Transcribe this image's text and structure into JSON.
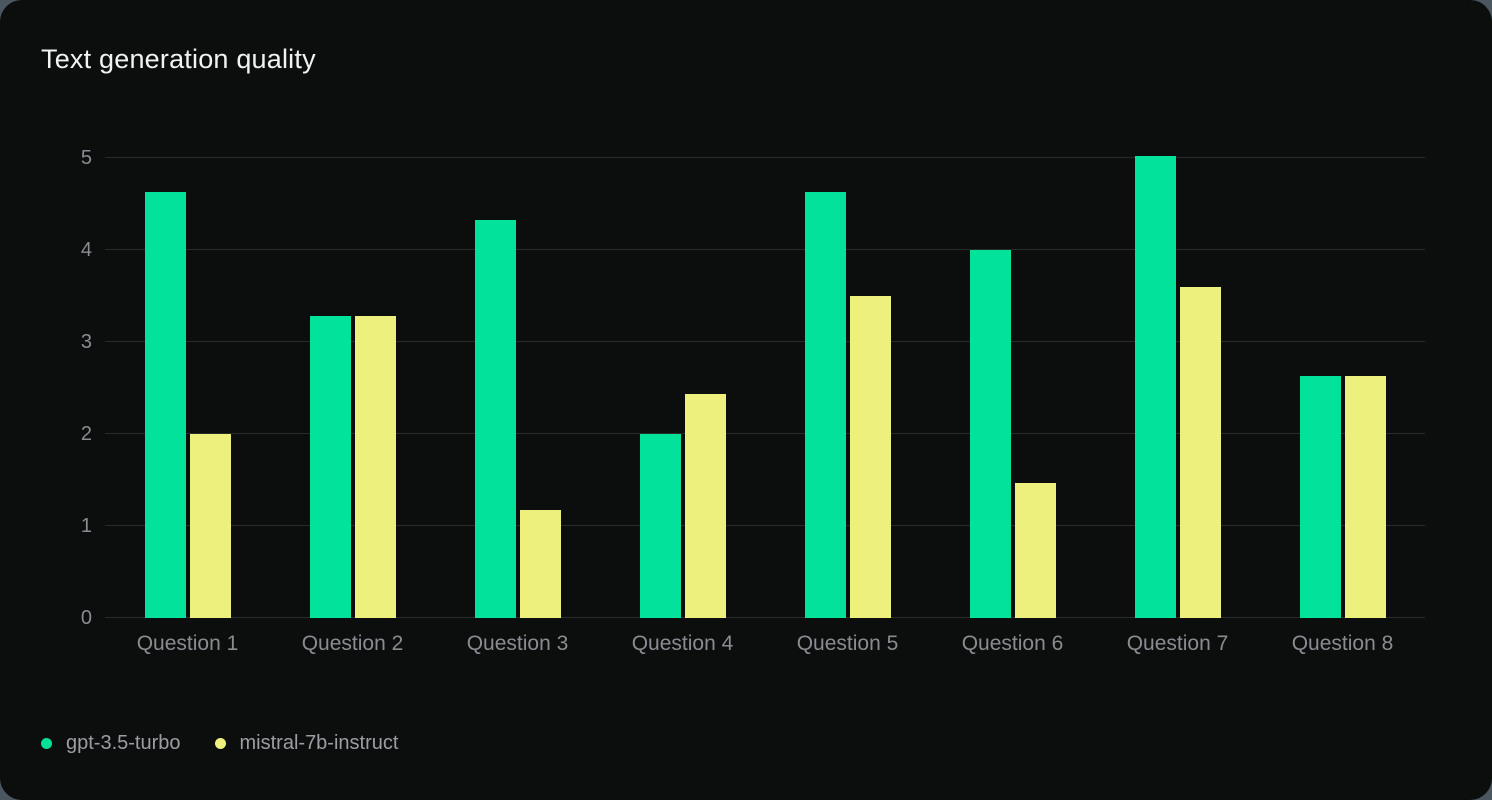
{
  "colors": {
    "page_background": "#4a5660",
    "card_background": "#0c0e0d",
    "gridline": "#2a2c2b",
    "axis_text": "#8b8b92",
    "title_text": "#f1f2f2",
    "legend_text": "#9d9ea5",
    "series_green": "#03e29b",
    "series_yellow": "#eef07d"
  },
  "chart_data": {
    "type": "bar",
    "title": "Text generation quality",
    "categories": [
      "Question 1",
      "Question 2",
      "Question 3",
      "Question 4",
      "Question 5",
      "Question 6",
      "Question 7",
      "Question 8"
    ],
    "series": [
      {
        "name": "gpt-3.5-turbo",
        "color": "#03e29b",
        "values": [
          4.63,
          3.28,
          4.33,
          2.0,
          4.63,
          4.0,
          5.02,
          2.63
        ]
      },
      {
        "name": "mistral-7b-instruct",
        "color": "#eef07d",
        "values": [
          2.0,
          3.28,
          1.17,
          2.43,
          3.5,
          1.47,
          3.6,
          2.63
        ]
      }
    ],
    "xlabel": "",
    "ylabel": "",
    "ylim": [
      0,
      5
    ],
    "yticks": [
      0,
      1,
      2,
      3,
      4,
      5
    ],
    "grid": true,
    "legend_position": "bottom-left"
  }
}
